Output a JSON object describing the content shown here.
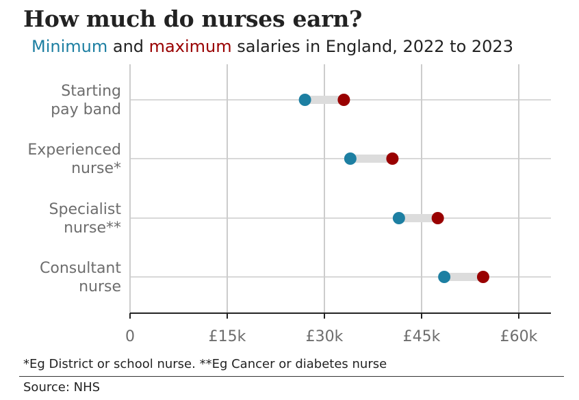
{
  "header": {
    "title": "How much do nurses earn?",
    "subtitle_min": "Minimum",
    "subtitle_and": "and",
    "subtitle_max": "maximum",
    "subtitle_rest": "salaries in England, 2022 to 2023"
  },
  "colors": {
    "minimum": "#1d7fa2",
    "maximum": "#990000",
    "range_bar": "#dcdcdc",
    "grid": "#cccccc",
    "axis": "#222222"
  },
  "chart_data": {
    "type": "dumbbell",
    "title": "How much do nurses earn?",
    "subtitle": "Minimum and maximum salaries in England, 2022 to 2023",
    "xlabel": "",
    "ylabel": "",
    "xlim": [
      0,
      65000
    ],
    "grid": true,
    "x_tick_values": [
      0,
      15000,
      30000,
      45000,
      60000
    ],
    "x_tick_labels": [
      "0",
      "£15k",
      "£30k",
      "£45k",
      "£60k"
    ],
    "categories": [
      [
        "Starting",
        "pay band"
      ],
      [
        "Experienced",
        "nurse*"
      ],
      [
        "Specialist",
        "nurse**"
      ],
      [
        "Consultant",
        "nurse"
      ]
    ],
    "series": [
      {
        "name": "Minimum",
        "values": [
          27000,
          34000,
          41500,
          48500
        ]
      },
      {
        "name": "Maximum",
        "values": [
          33000,
          40500,
          47500,
          54500
        ]
      }
    ]
  },
  "footer": {
    "footnote": "*Eg District or school nurse. **Eg Cancer or diabetes nurse",
    "source": "Source: NHS"
  }
}
